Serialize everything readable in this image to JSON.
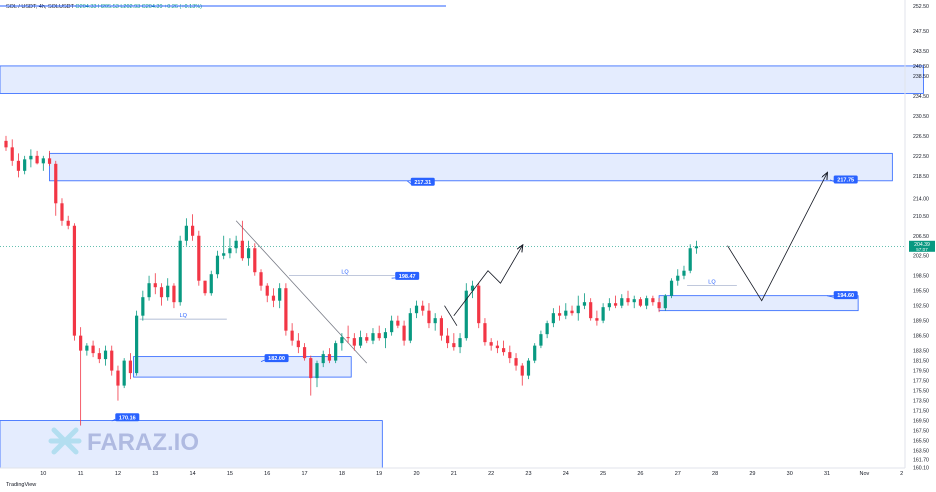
{
  "header": {
    "symbol": "SOL / USDT, 4h, SOLUSDT",
    "ohlc": "O204.33 H205.53 L202.93 C204.39 +0.26 (+0.13%)"
  },
  "footer": {
    "brand": "TradingView"
  },
  "watermark": {
    "text": "FARAZ.IO"
  },
  "colors": {
    "up": "#089981",
    "down": "#f23645",
    "zone_fill": "#dbe6fd",
    "zone_stroke": "#2962ff",
    "label_bg": "#2962ff",
    "price_line": "#089981",
    "arrow": "#131722",
    "trendline": "#787b86"
  },
  "chart_data": {
    "type": "candlestick",
    "timeframe": "4h",
    "ylim": [
      160.0,
      252.5
    ],
    "y_ticks": [
      252.5,
      247.5,
      243.5,
      240.5,
      238.5,
      234.5,
      230.5,
      226.5,
      222.5,
      218.5,
      214.0,
      210.5,
      206.5,
      202.5,
      198.5,
      195.5,
      192.5,
      189.5,
      186.5,
      183.5,
      181.5,
      179.5,
      177.5,
      175.5,
      173.5,
      171.5,
      169.5,
      167.5,
      165.5,
      163.5,
      161.7,
      160.1
    ],
    "y_tick_labels": [
      "252.50",
      "247.50",
      "243.50",
      "240.50",
      "238.50",
      "234.50",
      "230.50",
      "226.50",
      "222.50",
      "218.50",
      "214.00",
      "210.50",
      "206.50",
      "202.50",
      "198.50",
      "195.50",
      "192.50",
      "189.50",
      "186.50",
      "183.50",
      "181.50",
      "179.50",
      "177.50",
      "175.50",
      "173.50",
      "171.50",
      "169.50",
      "167.50",
      "165.50",
      "163.50",
      "161.70",
      "160.10"
    ],
    "x_ticks": [
      {
        "i": 6,
        "label": "10"
      },
      {
        "i": 12,
        "label": "11"
      },
      {
        "i": 18,
        "label": "12"
      },
      {
        "i": 24,
        "label": "13"
      },
      {
        "i": 30,
        "label": "14"
      },
      {
        "i": 36,
        "label": "15"
      },
      {
        "i": 42,
        "label": "16"
      },
      {
        "i": 48,
        "label": "17"
      },
      {
        "i": 54,
        "label": "18"
      },
      {
        "i": 60,
        "label": "19"
      },
      {
        "i": 66,
        "label": "20"
      },
      {
        "i": 72,
        "label": "21"
      },
      {
        "i": 78,
        "label": "22"
      },
      {
        "i": 84,
        "label": "23"
      },
      {
        "i": 90,
        "label": "24"
      },
      {
        "i": 96,
        "label": "25"
      },
      {
        "i": 102,
        "label": "26"
      },
      {
        "i": 108,
        "label": "27"
      },
      {
        "i": 114,
        "label": "28"
      },
      {
        "i": 120,
        "label": "29"
      },
      {
        "i": 126,
        "label": "30"
      },
      {
        "i": 132,
        "label": "31"
      },
      {
        "i": 138,
        "label": "Nov"
      },
      {
        "i": 144,
        "label": "2"
      }
    ],
    "last_price": 204.39,
    "last_price_label": "204.39",
    "countdown_label": "57:07",
    "candles": [
      [
        225.5,
        226.5,
        223.5,
        224.2
      ],
      [
        224.2,
        225.8,
        220.5,
        221.5
      ],
      [
        221.5,
        223.0,
        218.2,
        219.5
      ],
      [
        219.5,
        222.5,
        218.8,
        221.8
      ],
      [
        221.8,
        223.8,
        220.2,
        222.5
      ],
      [
        222.5,
        223.5,
        220.8,
        221.0
      ],
      [
        221.0,
        222.5,
        219.5,
        222.0
      ],
      [
        222.0,
        223.5,
        220.5,
        220.9
      ],
      [
        220.9,
        221.5,
        210.5,
        213.0
      ],
      [
        213.0,
        214.0,
        208.5,
        209.5
      ],
      [
        209.5,
        210.5,
        207.8,
        208.5
      ],
      [
        208.5,
        209.0,
        185.5,
        186.5
      ],
      [
        186.5,
        188.2,
        168.5,
        183.5
      ],
      [
        183.5,
        185.0,
        182.5,
        184.5
      ],
      [
        184.5,
        185.5,
        182.2,
        183.0
      ],
      [
        183.0,
        184.0,
        181.0,
        181.8
      ],
      [
        181.8,
        184.5,
        180.5,
        183.5
      ],
      [
        183.5,
        184.5,
        178.5,
        179.5
      ],
      [
        179.5,
        180.5,
        173.5,
        176.5
      ],
      [
        176.5,
        182.0,
        176.0,
        181.5
      ],
      [
        181.5,
        183.0,
        177.8,
        179.0
      ],
      [
        179.0,
        191.5,
        178.5,
        190.5
      ],
      [
        190.5,
        195.5,
        189.5,
        194.2
      ],
      [
        194.2,
        198.5,
        193.5,
        197.0
      ],
      [
        197.0,
        199.0,
        194.8,
        196.2
      ],
      [
        196.2,
        197.0,
        192.5,
        194.2
      ],
      [
        194.2,
        198.0,
        193.5,
        196.5
      ],
      [
        196.5,
        197.0,
        192.0,
        193.2
      ],
      [
        193.2,
        206.5,
        192.5,
        205.5
      ],
      [
        205.5,
        210.0,
        204.5,
        208.5
      ],
      [
        208.5,
        210.8,
        205.5,
        206.5
      ],
      [
        206.5,
        207.5,
        196.5,
        197.5
      ],
      [
        197.5,
        197.5,
        194.5,
        195.0
      ],
      [
        195.0,
        199.5,
        194.5,
        198.8
      ],
      [
        198.8,
        203.5,
        198.0,
        202.5
      ],
      [
        202.5,
        206.5,
        201.8,
        203.0
      ],
      [
        203.0,
        206.0,
        202.0,
        204.0
      ],
      [
        204.0,
        206.5,
        203.0,
        205.5
      ],
      [
        205.5,
        209.5,
        201.5,
        202.0
      ],
      [
        202.0,
        205.5,
        200.5,
        204.0
      ],
      [
        204.0,
        205.0,
        198.5,
        199.2
      ],
      [
        199.2,
        199.8,
        195.5,
        196.5
      ],
      [
        196.5,
        197.0,
        193.2,
        194.5
      ],
      [
        194.5,
        196.0,
        192.2,
        193.5
      ],
      [
        193.5,
        197.0,
        192.0,
        196.0
      ],
      [
        196.0,
        197.0,
        186.5,
        187.5
      ],
      [
        187.5,
        189.0,
        184.5,
        185.5
      ],
      [
        185.5,
        187.0,
        183.0,
        184.2
      ],
      [
        184.2,
        185.0,
        181.5,
        182.0
      ],
      [
        182.0,
        182.5,
        174.5,
        178.0
      ],
      [
        178.0,
        181.5,
        176.2,
        181.0
      ],
      [
        181.0,
        183.5,
        180.2,
        182.8
      ],
      [
        182.8,
        184.0,
        181.0,
        181.5
      ],
      [
        181.5,
        185.5,
        181.0,
        185.0
      ],
      [
        185.0,
        187.0,
        183.5,
        186.2
      ],
      [
        186.2,
        188.5,
        185.0,
        186.0
      ],
      [
        186.0,
        187.0,
        183.5,
        184.5
      ],
      [
        184.5,
        187.5,
        184.0,
        186.2
      ],
      [
        186.2,
        187.0,
        185.0,
        185.5
      ],
      [
        185.5,
        188.0,
        184.8,
        187.0
      ],
      [
        187.0,
        188.5,
        185.5,
        186.0
      ],
      [
        186.0,
        188.0,
        184.0,
        187.2
      ],
      [
        187.2,
        190.5,
        186.5,
        189.5
      ],
      [
        189.5,
        190.5,
        188.0,
        188.5
      ],
      [
        188.5,
        189.5,
        184.5,
        185.5
      ],
      [
        185.5,
        192.0,
        185.0,
        191.0
      ],
      [
        191.0,
        193.5,
        190.0,
        192.5
      ],
      [
        192.5,
        193.5,
        190.5,
        191.5
      ],
      [
        191.5,
        193.0,
        188.0,
        189.0
      ],
      [
        189.0,
        191.0,
        187.5,
        190.0
      ],
      [
        190.0,
        190.5,
        185.5,
        186.5
      ],
      [
        186.5,
        188.0,
        184.0,
        185.0
      ],
      [
        185.0,
        187.0,
        183.5,
        184.2
      ],
      [
        184.2,
        187.0,
        183.0,
        186.0
      ],
      [
        186.0,
        197.0,
        185.5,
        195.5
      ],
      [
        195.5,
        197.5,
        194.0,
        196.5
      ],
      [
        196.5,
        197.0,
        188.0,
        189.0
      ],
      [
        189.0,
        190.0,
        184.5,
        185.2
      ],
      [
        185.2,
        186.0,
        183.5,
        184.5
      ],
      [
        184.5,
        185.5,
        183.0,
        184.0
      ],
      [
        184.0,
        185.5,
        182.5,
        183.2
      ],
      [
        183.2,
        184.5,
        181.0,
        182.0
      ],
      [
        182.0,
        183.0,
        179.5,
        180.5
      ],
      [
        180.5,
        181.0,
        176.5,
        178.5
      ],
      [
        178.5,
        182.0,
        177.8,
        181.5
      ],
      [
        181.5,
        185.0,
        181.0,
        184.5
      ],
      [
        184.5,
        187.5,
        184.0,
        186.8
      ],
      [
        186.8,
        189.5,
        186.0,
        189.0
      ],
      [
        189.0,
        192.0,
        188.2,
        191.0
      ],
      [
        191.0,
        192.5,
        189.5,
        190.5
      ],
      [
        190.5,
        193.0,
        189.8,
        191.5
      ],
      [
        191.5,
        192.5,
        190.5,
        191.0
      ],
      [
        191.0,
        194.5,
        189.5,
        192.5
      ],
      [
        192.5,
        195.0,
        191.8,
        193.2
      ],
      [
        193.2,
        194.0,
        189.5,
        190.0
      ],
      [
        190.0,
        191.5,
        188.5,
        189.5
      ],
      [
        189.5,
        193.0,
        189.0,
        192.2
      ],
      [
        192.2,
        194.0,
        191.5,
        193.0
      ],
      [
        193.0,
        194.5,
        192.0,
        192.5
      ],
      [
        192.5,
        194.8,
        192.0,
        194.0
      ],
      [
        194.0,
        195.5,
        192.5,
        193.2
      ],
      [
        193.2,
        194.5,
        192.0,
        193.8
      ],
      [
        193.8,
        194.2,
        192.2,
        192.5
      ],
      [
        192.5,
        194.5,
        191.8,
        194.0
      ],
      [
        194.0,
        194.5,
        192.5,
        193.2
      ],
      [
        193.2,
        194.0,
        191.2,
        192.0
      ],
      [
        192.0,
        194.8,
        191.5,
        194.5
      ],
      [
        194.5,
        198.0,
        194.0,
        197.5
      ],
      [
        197.5,
        199.8,
        196.5,
        198.5
      ],
      [
        198.5,
        200.5,
        197.8,
        199.5
      ],
      [
        199.5,
        204.8,
        199.0,
        204.0
      ],
      [
        204.0,
        205.5,
        202.9,
        204.39
      ]
    ],
    "zones": [
      {
        "i0": -1,
        "i1": 147.5,
        "top": 240.5,
        "bottom": 235.0
      },
      {
        "i0": 7,
        "i1": 142.5,
        "top": 223.0,
        "bottom": 217.5
      },
      {
        "i0": 20.5,
        "i1": 55.5,
        "top": 182.3,
        "bottom": 178.2
      },
      {
        "i0": -1,
        "i1": 60.5,
        "top": 169.5,
        "bottom": 160.0
      },
      {
        "i0": 105,
        "i1": 137,
        "top": 194.5,
        "bottom": 191.5
      }
    ],
    "level_labels": [
      {
        "i": 67,
        "price": 217.31,
        "text": "217.31",
        "arrow_from_i": 64.5,
        "arrow_from_price": 217.5
      },
      {
        "i": 135,
        "price": 217.75,
        "text": "217.75",
        "arrow_from_i": 132.5,
        "arrow_from_price": 217.7
      },
      {
        "i": 64.5,
        "price": 198.47,
        "text": "198.47",
        "arrow_from_i": 62,
        "arrow_from_price": 198.0
      },
      {
        "i": 135,
        "price": 194.6,
        "text": "194.60",
        "arrow_from_i": 132,
        "arrow_from_price": 194.5
      },
      {
        "i": 43.5,
        "price": 182.0,
        "text": "182.00",
        "arrow_from_i": 41,
        "arrow_from_price": 181.3
      },
      {
        "i": 19.5,
        "price": 170.16,
        "text": "170.16",
        "arrow_from_i": 17,
        "arrow_from_price": 169.4
      }
    ],
    "lq_marks": [
      {
        "text": "LQ",
        "i0": 21.5,
        "i1": 35.5,
        "price": 189.8,
        "label_i": 28.5
      },
      {
        "text": "LQ",
        "i0": 45.5,
        "i1": 62.5,
        "price": 198.5,
        "label_i": 54.5
      },
      {
        "text": "LQ",
        "i0": 109.5,
        "i1": 117.5,
        "price": 196.5,
        "label_i": 113.5
      }
    ],
    "trendline": {
      "i0": 37,
      "p0": 209.5,
      "i1": 58,
      "p1": 181.0
    },
    "projections": [
      {
        "points": [
          [
            72,
            190.5
          ],
          [
            77.5,
            199.5
          ],
          [
            79.5,
            197.0
          ],
          [
            83,
            204.5
          ]
        ],
        "arrow": true
      },
      {
        "points": [
          [
            116,
            204.5
          ],
          [
            121.5,
            193.5
          ],
          [
            132,
            219.0
          ]
        ],
        "arrow": true
      },
      {
        "points": [
          [
            70.5,
            192.5
          ],
          [
            72.5,
            188.5
          ]
        ],
        "arrow": false
      }
    ]
  }
}
